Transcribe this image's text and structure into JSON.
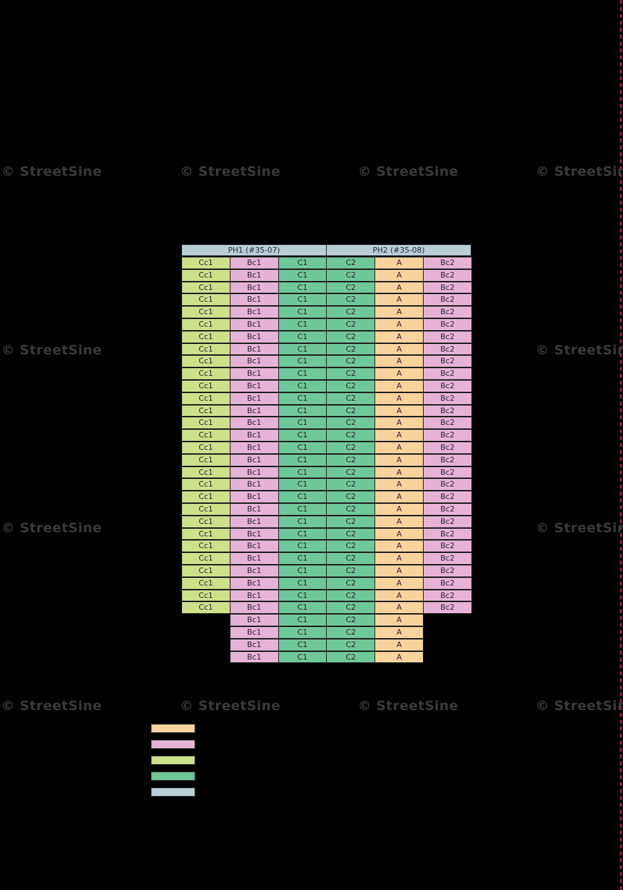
{
  "watermark": "© StreetSine",
  "colors": {
    "Cc1": "#cde08a",
    "Bc1": "#e6b3d6",
    "C1": "#6fc89a",
    "C2": "#6fc89a",
    "A": "#f9d39c",
    "Bc2": "#e6b3d6",
    "header": "#b9cfd6",
    "divider": "#c0245a"
  },
  "headers": [
    {
      "label": "PH1 (#35-07)",
      "span": 3
    },
    {
      "label": "PH2 (#35-08)",
      "span": 3
    }
  ],
  "columns": [
    {
      "type": "Cc1",
      "floors": 29
    },
    {
      "type": "Bc1",
      "floors": 33
    },
    {
      "type": "C1",
      "floors": 33
    },
    {
      "type": "C2",
      "floors": 33
    },
    {
      "type": "A",
      "floors": 33
    },
    {
      "type": "Bc2",
      "floors": 29
    }
  ],
  "legend": [
    {
      "color": "#f9d39c"
    },
    {
      "color": "#e6b3d6"
    },
    {
      "color": "#cde08a"
    },
    {
      "color": "#6fc89a"
    },
    {
      "color": "#b9cfd6"
    }
  ]
}
